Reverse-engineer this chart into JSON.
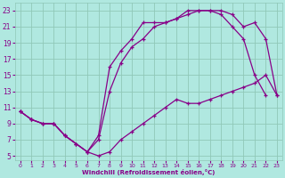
{
  "background_color": "#b0e8e0",
  "grid_color": "#90c8b8",
  "line_color": "#880088",
  "xlabel": "Windchill (Refroidissement éolien,°C)",
  "yticks": [
    5,
    7,
    9,
    11,
    13,
    15,
    17,
    19,
    21,
    23
  ],
  "xticks": [
    0,
    1,
    2,
    3,
    4,
    5,
    6,
    7,
    8,
    9,
    10,
    11,
    12,
    13,
    14,
    15,
    16,
    17,
    18,
    19,
    20,
    21,
    22,
    23
  ],
  "xlim": [
    -0.5,
    23.5
  ],
  "ylim": [
    4.5,
    24
  ],
  "series": [
    {
      "x": [
        0,
        1,
        2,
        3,
        4,
        5,
        6,
        7,
        8,
        9,
        10,
        11,
        12,
        13,
        14,
        15,
        16,
        17,
        18,
        19,
        20,
        21,
        22,
        23
      ],
      "y": [
        10.5,
        9.5,
        9,
        9,
        7.5,
        6.5,
        5.5,
        5.0,
        5.5,
        7.0,
        8.0,
        9.0,
        10.0,
        11.0,
        12.0,
        11.5,
        11.5,
        12.0,
        12.5,
        13.0,
        13.5,
        14.0,
        15.0,
        12.5
      ]
    },
    {
      "x": [
        0,
        1,
        2,
        3,
        4,
        5,
        6,
        7,
        8,
        9,
        10,
        11,
        12,
        13,
        14,
        15,
        16,
        17,
        18,
        19,
        20,
        21,
        22
      ],
      "y": [
        10.5,
        9.5,
        9,
        9,
        7.5,
        6.5,
        5.5,
        7.5,
        16.0,
        18.0,
        19.5,
        21.5,
        21.5,
        21.5,
        22.0,
        22.5,
        23.0,
        23.0,
        22.5,
        21.0,
        19.5,
        15.0,
        12.5
      ]
    },
    {
      "x": [
        0,
        1,
        2,
        3,
        4,
        5,
        6,
        7,
        8,
        9,
        10,
        11,
        12,
        13,
        14,
        15,
        16,
        17,
        18,
        19,
        20,
        21,
        22,
        23
      ],
      "y": [
        10.5,
        9.5,
        9,
        9,
        7.5,
        6.5,
        5.5,
        7.0,
        13.0,
        16.5,
        18.5,
        19.5,
        21.0,
        21.5,
        22.0,
        23.0,
        23.0,
        23.0,
        23.0,
        22.5,
        21.0,
        21.5,
        19.5,
        12.5
      ]
    }
  ]
}
